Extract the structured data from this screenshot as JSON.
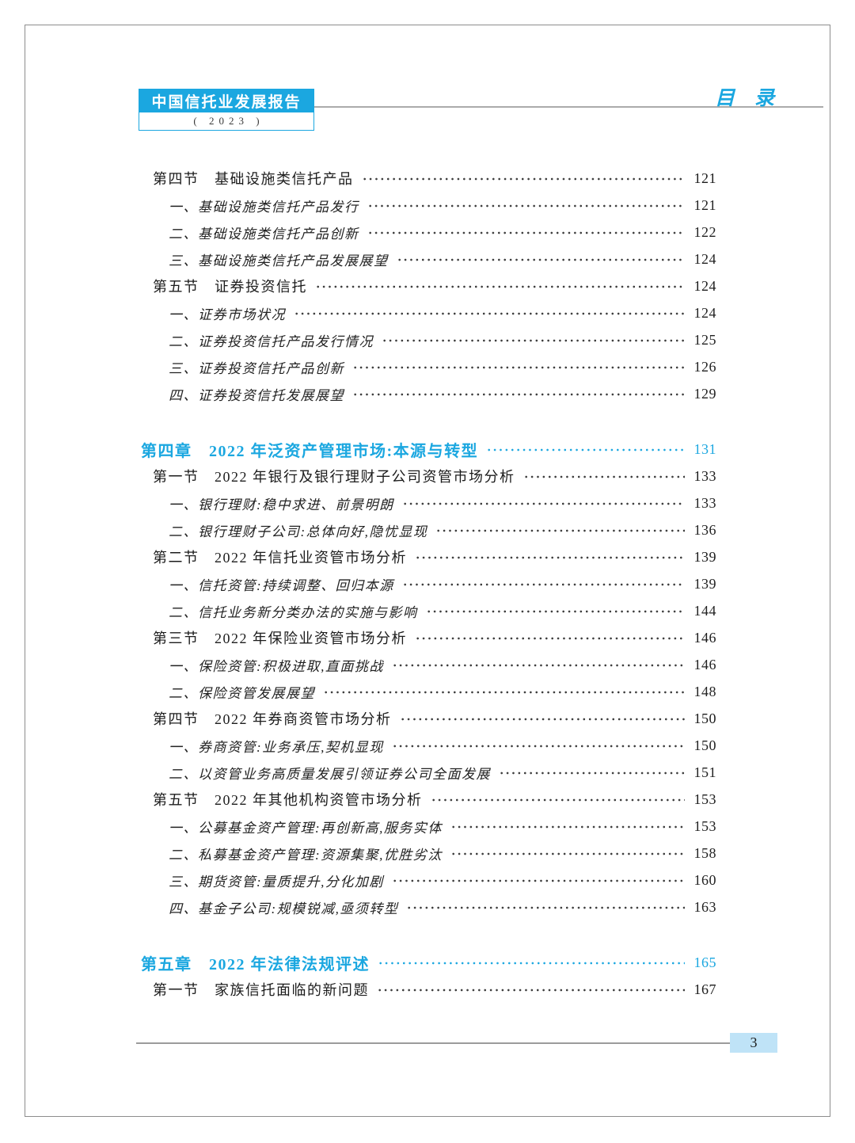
{
  "colors": {
    "accent": "#1ba7e0",
    "folio_bg": "#bfe3f7"
  },
  "header": {
    "brand_title": "中国信托业发展报告",
    "brand_subtitle": "( 2023 )",
    "corner_label": "目　录"
  },
  "footer": {
    "page_number": "3"
  },
  "toc": {
    "entries": [
      {
        "level": "section",
        "text": "第四节　基础设施类信托产品",
        "page": "121"
      },
      {
        "level": "item",
        "text": "一、基础设施类信托产品发行",
        "page": "121"
      },
      {
        "level": "item",
        "text": "二、基础设施类信托产品创新",
        "page": "122"
      },
      {
        "level": "item",
        "text": "三、基础设施类信托产品发展展望",
        "page": "124"
      },
      {
        "level": "section",
        "text": "第五节　证券投资信托",
        "page": "124"
      },
      {
        "level": "item",
        "text": "一、证券市场状况",
        "page": "124"
      },
      {
        "level": "item",
        "text": "二、证券投资信托产品发行情况",
        "page": "125"
      },
      {
        "level": "item",
        "text": "三、证券投资信托产品创新",
        "page": "126"
      },
      {
        "level": "item",
        "text": "四、证券投资信托发展展望",
        "page": "129"
      },
      {
        "level": "chapter",
        "text": "第四章　2022 年泛资产管理市场:本源与转型",
        "page": "131"
      },
      {
        "level": "section",
        "text": "第一节　2022 年银行及银行理财子公司资管市场分析",
        "page": "133"
      },
      {
        "level": "item",
        "text": "一、银行理财:稳中求进、前景明朗",
        "page": "133"
      },
      {
        "level": "item",
        "text": "二、银行理财子公司:总体向好,隐忧显现",
        "page": "136"
      },
      {
        "level": "section",
        "text": "第二节　2022 年信托业资管市场分析",
        "page": "139"
      },
      {
        "level": "item",
        "text": "一、信托资管:持续调整、回归本源",
        "page": "139"
      },
      {
        "level": "item",
        "text": "二、信托业务新分类办法的实施与影响",
        "page": "144"
      },
      {
        "level": "section",
        "text": "第三节　2022 年保险业资管市场分析",
        "page": "146"
      },
      {
        "level": "item",
        "text": "一、保险资管:积极进取,直面挑战",
        "page": "146"
      },
      {
        "level": "item",
        "text": "二、保险资管发展展望",
        "page": "148"
      },
      {
        "level": "section",
        "text": "第四节　2022 年券商资管市场分析",
        "page": "150"
      },
      {
        "level": "item",
        "text": "一、券商资管:业务承压,契机显现",
        "page": "150"
      },
      {
        "level": "item",
        "text": "二、以资管业务高质量发展引领证券公司全面发展",
        "page": "151"
      },
      {
        "level": "section",
        "text": "第五节　2022 年其他机构资管市场分析",
        "page": "153"
      },
      {
        "level": "item",
        "text": "一、公募基金资产管理:再创新高,服务实体",
        "page": "153"
      },
      {
        "level": "item",
        "text": "二、私募基金资产管理:资源集聚,优胜劣汰",
        "page": "158"
      },
      {
        "level": "item",
        "text": "三、期货资管:量质提升,分化加剧",
        "page": "160"
      },
      {
        "level": "item",
        "text": "四、基金子公司:规模锐减,亟须转型",
        "page": "163"
      },
      {
        "level": "chapter",
        "text": "第五章　2022 年法律法规评述",
        "page": "165"
      },
      {
        "level": "section",
        "text": "第一节　家族信托面临的新问题",
        "page": "167"
      }
    ]
  }
}
